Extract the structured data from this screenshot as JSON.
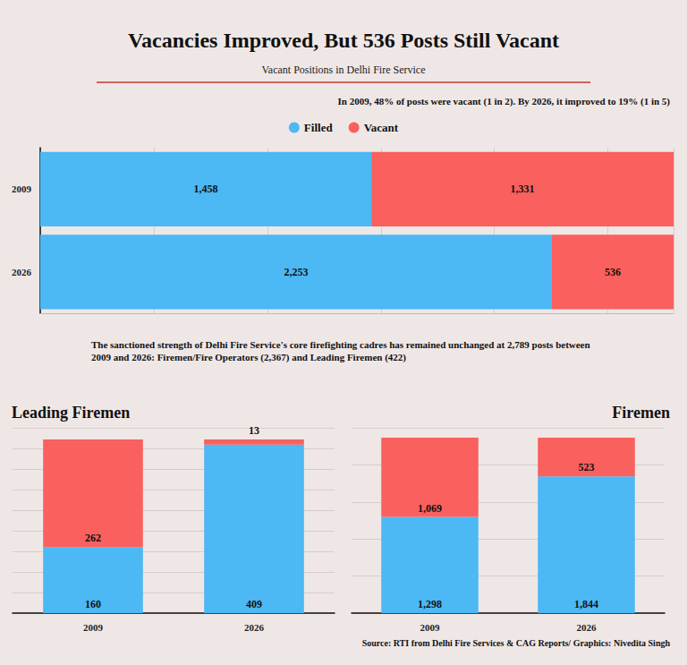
{
  "title": "Vacancies Improved, But 536 Posts Still Vacant",
  "subtitle": "Vacant Positions in Delhi Fire Service",
  "annotation": "In 2009, 48% of posts were vacant (1 in 2). By 2026, it improved to 19% (1 in 5)",
  "note": "The sanctioned strength of Delhi Fire Service's core firefighting cadres has remained unchanged at 2,789 posts between 2009 and 2026: Firemen/Fire Operators (2,367) and Leading Firemen (422)",
  "source": "Source: RTI from Delhi Fire Services & CAG Reports/ Graphics: Nivedita Singh",
  "chart_data": [
    {
      "type": "bar",
      "orientation": "horizontal",
      "stacked": true,
      "data_labels": true,
      "grid": true,
      "legend": "top",
      "tick_labels": "y",
      "categories": [
        "2009",
        "2026"
      ],
      "series": [
        {
          "name": "Filled",
          "color": "#4cb8f4",
          "values": [
            1458,
            2253
          ],
          "value_labels": [
            "1,458",
            "2,253"
          ]
        },
        {
          "name": "Vacant",
          "color": "#f9605e",
          "values": [
            1331,
            536
          ],
          "value_labels": [
            "1,331",
            "536"
          ]
        }
      ],
      "xlim": [
        0,
        2789
      ],
      "xticks": [
        0,
        500,
        1000,
        1500,
        2000,
        2500
      ]
    },
    {
      "type": "bar",
      "title": "Leading Firemen",
      "stacked": true,
      "data_labels": true,
      "grid": true,
      "tick_labels": "x",
      "categories": [
        "2009",
        "2026"
      ],
      "series": [
        {
          "name": "Filled",
          "color": "#4cb8f4",
          "values": [
            160,
            409
          ]
        },
        {
          "name": "Vacant",
          "color": "#f9605e",
          "values": [
            262,
            13
          ]
        }
      ],
      "ylim": [
        0,
        450
      ],
      "yticks": [
        0,
        50,
        100,
        150,
        200,
        250,
        300,
        350,
        400,
        450
      ]
    },
    {
      "type": "bar",
      "title": "Firemen",
      "stacked": true,
      "data_labels": true,
      "grid": true,
      "tick_labels": "x",
      "categories": [
        "2009",
        "2026"
      ],
      "series": [
        {
          "name": "Filled",
          "color": "#4cb8f4",
          "values": [
            1298,
            1844
          ],
          "value_labels": [
            "1,298",
            "1,844"
          ]
        },
        {
          "name": "Vacant",
          "color": "#f9605e",
          "values": [
            1069,
            523
          ],
          "value_labels": [
            "1,069",
            "523"
          ]
        }
      ],
      "ylim": [
        0,
        2500
      ],
      "yticks": [
        0,
        500,
        1000,
        1500,
        2000,
        2500
      ]
    }
  ]
}
